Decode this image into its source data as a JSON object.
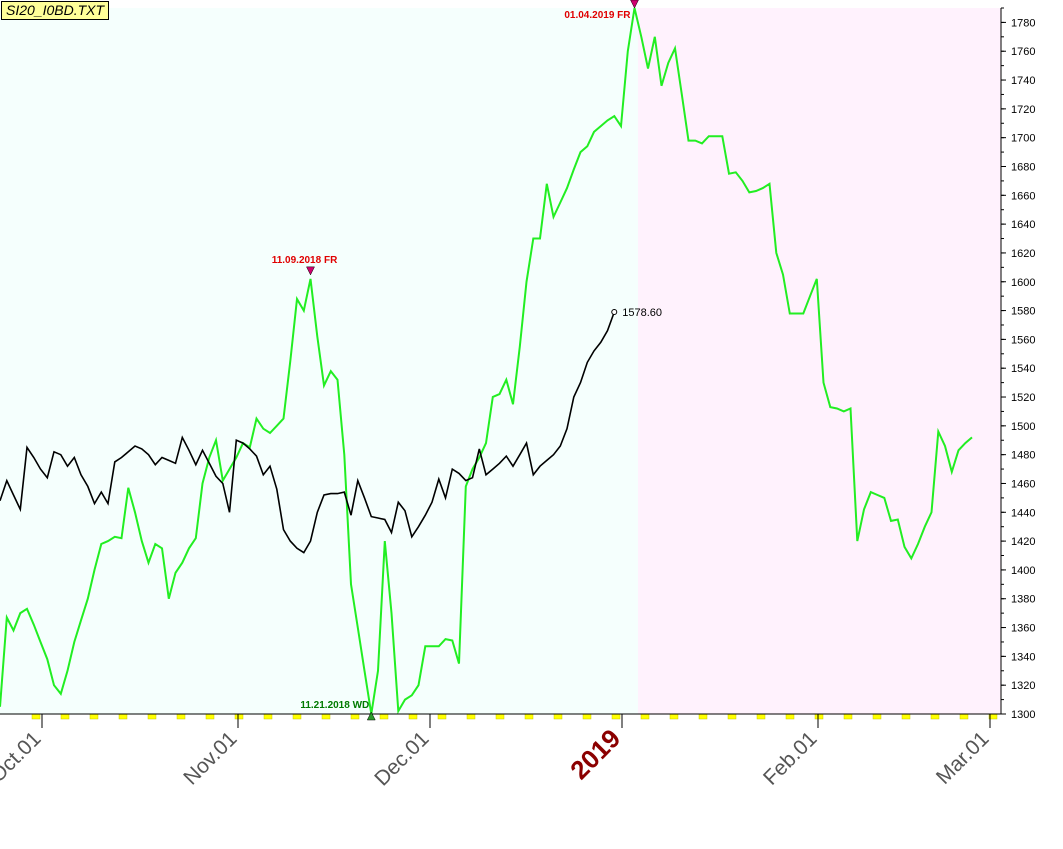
{
  "title": "SI20_I0BD.TXT",
  "colors": {
    "future_bg": "#f5fffd",
    "bg_2019": "#fff2fd",
    "green_series": "#22ee22",
    "black_series": "#000000",
    "annot_red": "#e00000",
    "annot_green": "#007a00",
    "year_label": "#8b0000",
    "marker_yellow": "#ffff00"
  },
  "chart_data": {
    "type": "line",
    "ylim": [
      1300,
      1790
    ],
    "y_ticks": [
      1300,
      1320,
      1340,
      1360,
      1380,
      1400,
      1420,
      1440,
      1460,
      1480,
      1500,
      1520,
      1540,
      1560,
      1580,
      1600,
      1620,
      1640,
      1660,
      1680,
      1700,
      1720,
      1740,
      1760,
      1780
    ],
    "x_tick_labels": [
      "Oct.01",
      "Nov.01",
      "Dec.01",
      "2019",
      "Feb.01",
      "Mar.01"
    ],
    "series": [
      {
        "color": "green",
        "values": [
          1305,
          1367,
          1358,
          1370,
          1373,
          1362,
          1350,
          1338,
          1320,
          1314,
          1330,
          1350,
          1365,
          1380,
          1400,
          1418,
          1420,
          1423,
          1422,
          1457,
          1440,
          1420,
          1405,
          1418,
          1415,
          1380,
          1398,
          1405,
          1415,
          1422,
          1460,
          1478,
          1490,
          1462,
          1470,
          1478,
          1488,
          1485,
          1505,
          1498,
          1495,
          1500,
          1505,
          1545,
          1588,
          1580,
          1602,
          1562,
          1528,
          1538,
          1532,
          1480,
          1390,
          1360,
          1330,
          1300,
          1330,
          1420,
          1370,
          1302,
          1310,
          1313,
          1320,
          1347,
          1347,
          1347,
          1352,
          1351,
          1335,
          1458,
          1470,
          1478,
          1488,
          1520,
          1522,
          1532,
          1515,
          1555,
          1600,
          1630,
          1630,
          1668,
          1645,
          1655,
          1665,
          1678,
          1690,
          1694,
          1704,
          1708,
          1712,
          1715,
          1708,
          1760,
          1790,
          1770,
          1748,
          1770,
          1736,
          1752,
          1762,
          1730,
          1698,
          1698,
          1696,
          1701,
          1701,
          1701,
          1675,
          1676,
          1670,
          1662,
          1663,
          1665,
          1668,
          1620,
          1605,
          1578,
          1578,
          1578,
          1590,
          1602,
          1530,
          1513,
          1512,
          1510,
          1512,
          1420,
          1442,
          1454,
          1452,
          1450,
          1434,
          1435,
          1416,
          1408,
          1418,
          1430,
          1440,
          1496,
          1486,
          1468,
          1483,
          1488,
          1492
        ]
      },
      {
        "color": "black",
        "values": [
          1448,
          1462,
          1452,
          1442,
          1485,
          1478,
          1470,
          1464,
          1482,
          1480,
          1472,
          1478,
          1466,
          1458,
          1446,
          1454,
          1446,
          1475,
          1478,
          1482,
          1486,
          1484,
          1480,
          1473,
          1478,
          1476,
          1474,
          1492,
          1483,
          1473,
          1483,
          1474,
          1465,
          1460,
          1440,
          1490,
          1488,
          1484,
          1479,
          1466,
          1472,
          1456,
          1428,
          1420,
          1415,
          1412,
          1420,
          1440,
          1452,
          1453,
          1453,
          1454,
          1438,
          1462,
          1450,
          1437,
          1436,
          1435,
          1426,
          1447,
          1441,
          1423,
          1430,
          1438,
          1447,
          1463,
          1450,
          1470,
          1467,
          1462,
          1464,
          1484,
          1466,
          1470,
          1474,
          1479,
          1472,
          1480,
          1488,
          1466,
          1472,
          1476,
          1480,
          1486,
          1498,
          1520,
          1530,
          1544,
          1552,
          1558,
          1566,
          1579
        ]
      }
    ],
    "last_value_label": "1578.60",
    "annotations": [
      {
        "text": "11.09.2018 FR",
        "type": "peak"
      },
      {
        "text": "11.21.2018 WD",
        "type": "trough"
      },
      {
        "text": "01.04.2019 FR",
        "type": "peak"
      }
    ],
    "shaded_regions": [
      "future projection",
      "2019"
    ],
    "grid": false
  }
}
